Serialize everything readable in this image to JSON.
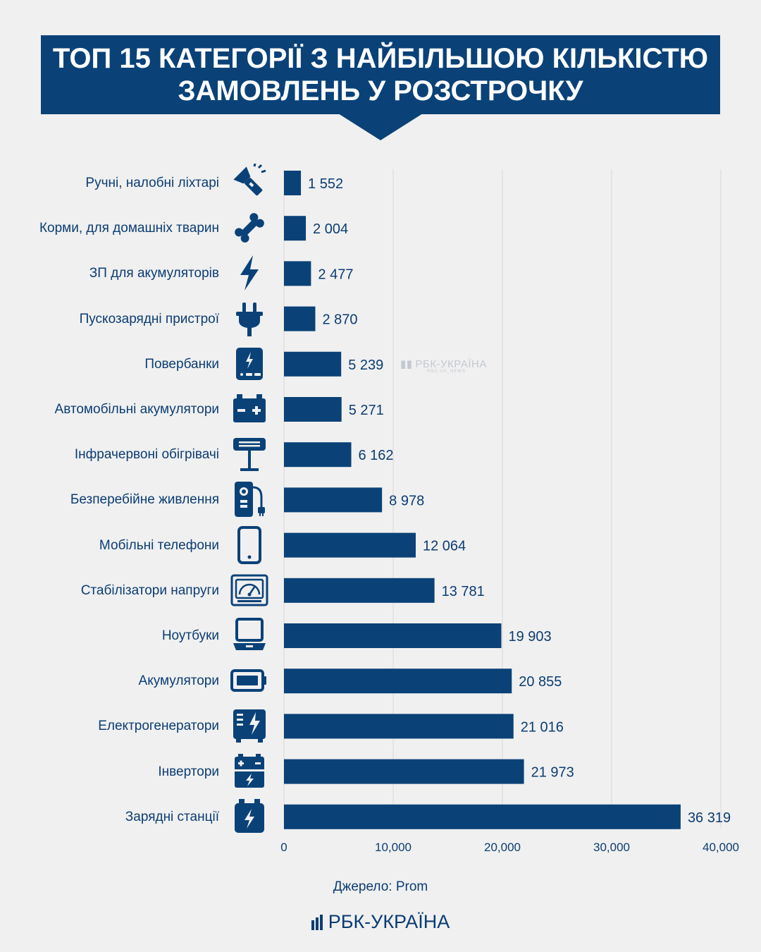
{
  "title": {
    "line1": "ТОП 15 КАТЕГОРІЇ З НАЙБІЛЬШОЮ КІЛЬКІСТЮ",
    "line2": "ЗАМОВЛЕНЬ У РОЗСТРОЧКУ"
  },
  "colors": {
    "bar": "#0a4278",
    "title_bg": "#0a4278",
    "text": "#0b3d73",
    "grid": "#d9d9d9",
    "background": "#f0f0f0"
  },
  "watermark": {
    "text": "РБК-УКРАЇНА",
    "subtext": "RBC.UA_NEWS"
  },
  "source": "Джерело: Prom",
  "logo": {
    "text": "РБК-УКРАЇНА"
  },
  "chart_data": {
    "type": "bar",
    "orientation": "horizontal",
    "categories": [
      "Ручні, налобні ліхтарі",
      "Корми, для домашніх тварин",
      "ЗП для акумуляторів",
      "Пускозарядні пристрої",
      "Повербанки",
      "Автомобільні акумулятори",
      "Інфрачервоні обігрівачі",
      "Безперебійне живлення",
      "Мобільні телефони",
      "Стабілізатори напруги",
      "Ноутбуки",
      "Акумулятори",
      "Електрогенератори",
      "Інвертори",
      "Зарядні станції"
    ],
    "values": [
      1552,
      2004,
      2477,
      2870,
      5239,
      5271,
      6162,
      8978,
      12064,
      13781,
      19903,
      20855,
      21016,
      21973,
      36319
    ],
    "value_labels": [
      "1 552",
      "2 004",
      "2 477",
      "2 870",
      "5 239",
      "5 271",
      "6 162",
      "8 978",
      "12 064",
      "13 781",
      "19 903",
      "20 855",
      "21 016",
      "21 973",
      "36 319"
    ],
    "icons": [
      "flashlight-icon",
      "bone-icon",
      "lightning-bolt-icon",
      "plug-icon",
      "powerbank-icon",
      "car-battery-icon",
      "infrared-heater-icon",
      "ups-icon",
      "mobile-phone-icon",
      "voltage-stabilizer-icon",
      "laptop-icon",
      "battery-icon",
      "generator-icon",
      "inverter-icon",
      "charging-station-icon"
    ],
    "xlim": [
      0,
      40000
    ],
    "x_ticks": [
      0,
      10000,
      20000,
      30000,
      40000
    ],
    "x_tick_labels": [
      "0",
      "10,000",
      "20,000",
      "30,000",
      "40,000"
    ],
    "grid": true,
    "legend": "none"
  }
}
